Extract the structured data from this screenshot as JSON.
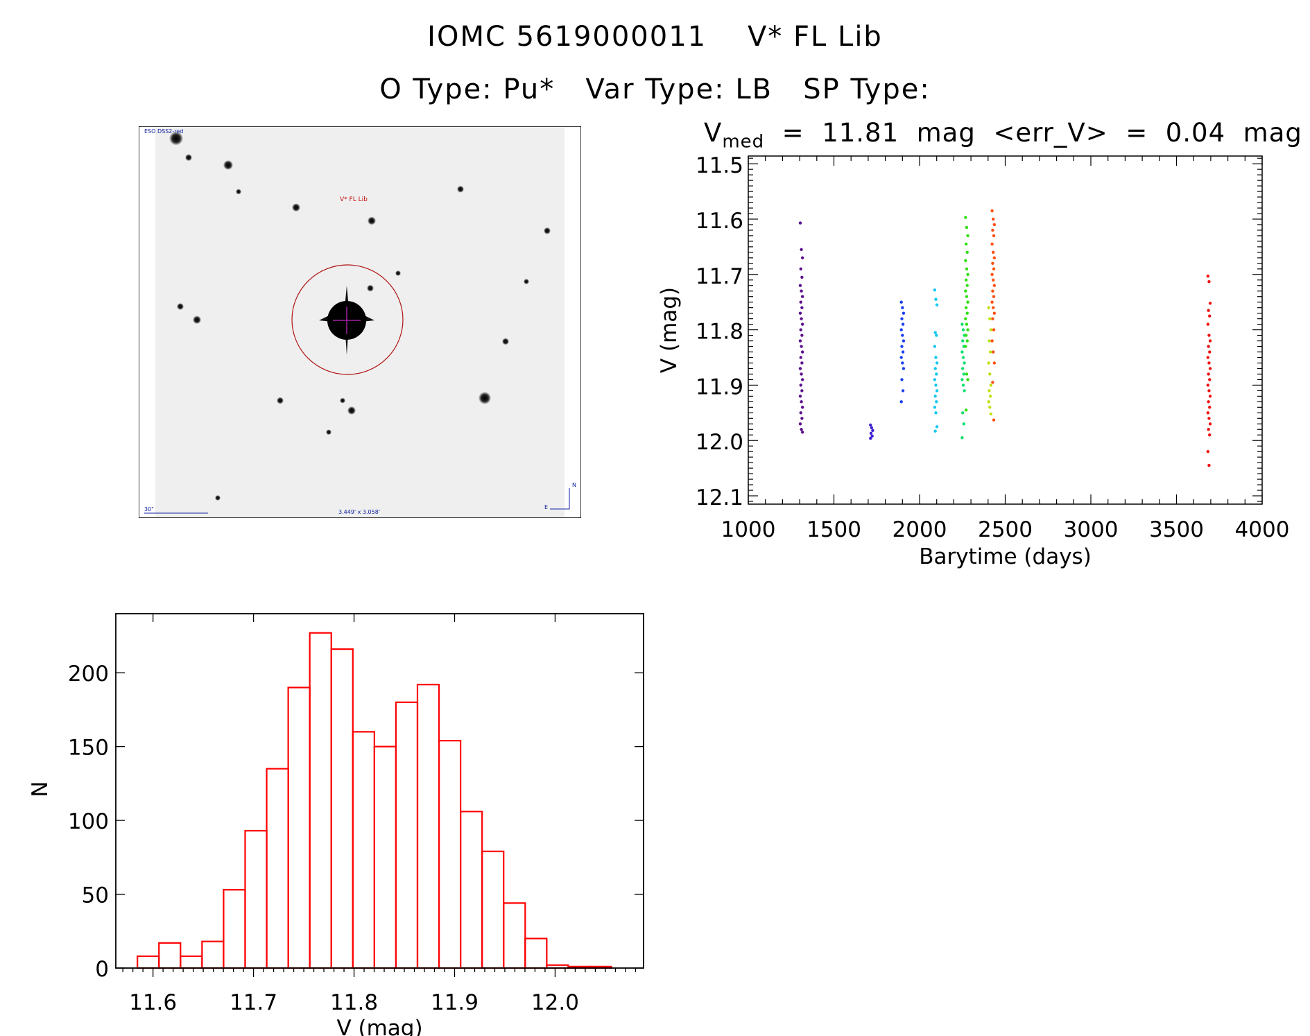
{
  "header": {
    "title": "IOMC 5619000011    V* FL Lib",
    "subtitle": "O Type: Pu*   Var Type: LB   SP Type:",
    "stats_prefix": "V",
    "stats_sub": "med",
    "stats_rest": "  =  11.81  mag  <err_V>  =  0.04  mag"
  },
  "finder": {
    "survey_label": "ESO DSS2-red",
    "object_label": "V* FL Lib",
    "scale_label": "30\"",
    "fov_label": "3.449' x 3.058'",
    "north_label": "N",
    "east_label": "E",
    "colors": {
      "circle": "#b01010",
      "labels": "#1020a0",
      "cross": "#a020a0"
    }
  },
  "chart_data": [
    {
      "type": "scatter",
      "title": "V_med = 11.81 mag <err_V> = 0.04 mag",
      "xlabel": "Barytime (days)",
      "ylabel": "V (mag)",
      "xlim": [
        1000,
        4000
      ],
      "ylim": [
        12.115,
        11.486
      ],
      "xticks": [
        "1000",
        "1500",
        "2000",
        "2500",
        "3000",
        "3500",
        "4000"
      ],
      "yticks": [
        "11.5",
        "11.6",
        "11.7",
        "11.8",
        "11.9",
        "12.0",
        "12.1"
      ],
      "series": [
        {
          "x": 1310,
          "color": "#5b0f8c",
          "y": [
            11.607,
            11.655,
            11.67,
            11.69,
            11.705,
            11.72,
            11.73,
            11.74,
            11.75,
            11.76,
            11.77,
            11.78,
            11.79,
            11.8,
            11.81,
            11.82,
            11.83,
            11.84,
            11.85,
            11.86,
            11.87,
            11.88,
            11.89,
            11.9,
            11.91,
            11.92,
            11.93,
            11.94,
            11.95,
            11.96,
            11.97,
            11.98,
            11.985
          ]
        },
        {
          "x": 1720,
          "color": "#4020d0",
          "y": [
            11.972,
            11.977,
            11.982,
            11.987,
            11.992,
            11.996
          ]
        },
        {
          "x": 1900,
          "color": "#1a40f0",
          "y": [
            11.75,
            11.76,
            11.77,
            11.78,
            11.79,
            11.8,
            11.81,
            11.82,
            11.83,
            11.84,
            11.85,
            11.86,
            11.87,
            11.89,
            11.91,
            11.93
          ]
        },
        {
          "x": 2095,
          "color": "#10c8f0",
          "y": [
            11.728,
            11.745,
            11.755,
            11.805,
            11.81,
            11.83,
            11.85,
            11.86,
            11.87,
            11.88,
            11.89,
            11.9,
            11.91,
            11.92,
            11.93,
            11.94,
            11.95,
            11.975,
            11.983
          ]
        },
        {
          "x": 2255,
          "color": "#10e070",
          "y": [
            11.79,
            11.8,
            11.81,
            11.82,
            11.83,
            11.84,
            11.85,
            11.86,
            11.87,
            11.88,
            11.89,
            11.9,
            11.91,
            11.95,
            11.97,
            11.995
          ]
        },
        {
          "x": 2275,
          "color": "#30e010",
          "y": [
            11.597,
            11.615,
            11.63,
            11.645,
            11.66,
            11.675,
            11.69,
            11.7,
            11.71,
            11.72,
            11.73,
            11.74,
            11.75,
            11.76,
            11.77,
            11.78,
            11.79,
            11.8,
            11.81,
            11.82,
            11.83,
            11.88,
            11.89,
            11.945
          ]
        },
        {
          "x": 2410,
          "color": "#c0e010",
          "y": [
            11.76,
            11.78,
            11.8,
            11.82,
            11.84,
            11.86,
            11.88,
            11.9,
            11.91,
            11.92,
            11.93,
            11.94,
            11.952
          ]
        },
        {
          "x": 2430,
          "color": "#ff5010",
          "y": [
            11.585,
            11.6,
            11.61,
            11.62,
            11.63,
            11.645,
            11.66,
            11.67,
            11.68,
            11.69,
            11.7,
            11.71,
            11.72,
            11.73,
            11.74,
            11.75,
            11.76,
            11.77,
            11.78,
            11.8,
            11.82,
            11.84,
            11.86,
            11.895,
            11.963
          ]
        },
        {
          "x": 3690,
          "color": "#f01010",
          "y": [
            11.703,
            11.713,
            11.752,
            11.765,
            11.775,
            11.79,
            11.81,
            11.82,
            11.83,
            11.84,
            11.85,
            11.86,
            11.87,
            11.88,
            11.89,
            11.9,
            11.91,
            11.92,
            11.93,
            11.94,
            11.95,
            11.96,
            11.97,
            11.98,
            11.99,
            12.02,
            12.045
          ]
        }
      ]
    },
    {
      "type": "bar",
      "subtype": "histogram",
      "xlabel": "V (mag)",
      "ylabel": "N",
      "xlim": [
        11.563,
        12.088
      ],
      "ylim": [
        0,
        240
      ],
      "xticks": [
        "11.6",
        "11.7",
        "11.8",
        "11.9",
        "12.0"
      ],
      "yticks": [
        "0",
        "50",
        "100",
        "150",
        "200"
      ],
      "bin_start": 11.5845,
      "bin_width": 0.02143,
      "values": [
        8,
        17,
        8,
        18,
        53,
        93,
        135,
        190,
        227,
        216,
        160,
        150,
        180,
        192,
        154,
        106,
        79,
        44,
        20,
        2,
        1,
        1
      ],
      "color": "#ff0000"
    }
  ]
}
